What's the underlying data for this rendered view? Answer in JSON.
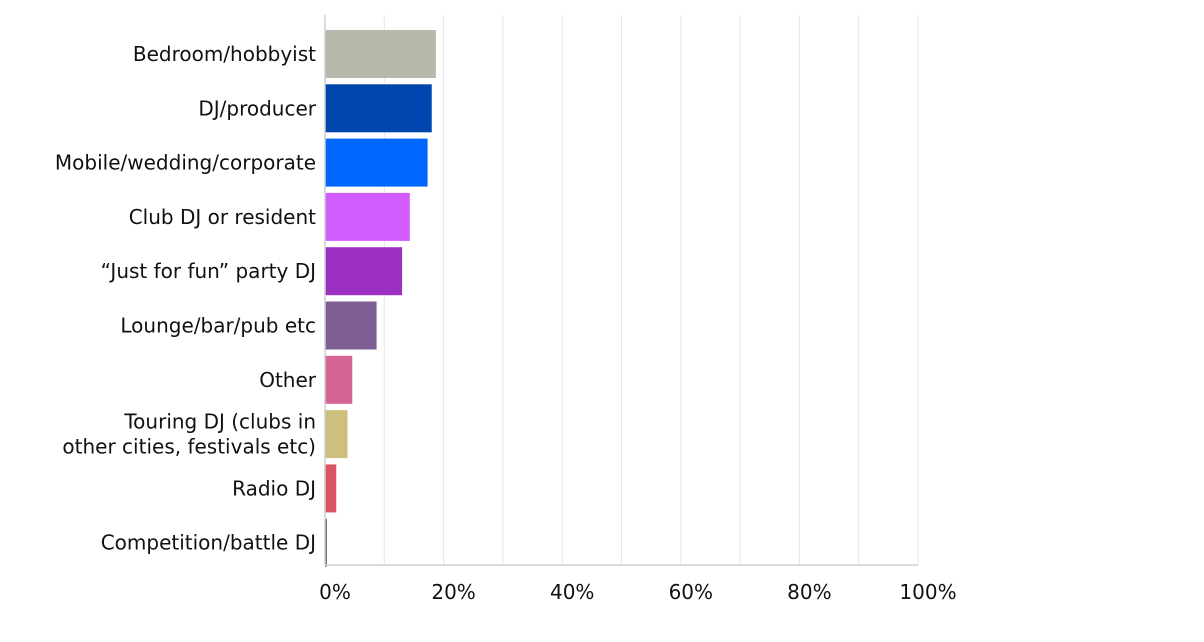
{
  "chart_data": {
    "type": "bar",
    "orientation": "horizontal",
    "categories": [
      "Bedroom/hobbyist",
      "DJ/producer",
      "Mobile/wedding/corporate",
      "Club DJ or resident",
      "“Just for fun” party DJ",
      "Lounge/bar/pub etc",
      "Other",
      "Touring DJ (clubs in other cities, festivals etc)",
      "Radio DJ",
      "Competition/battle DJ"
    ],
    "category_lines": [
      [
        "Bedroom/hobbyist"
      ],
      [
        "DJ/producer"
      ],
      [
        "Mobile/wedding/corporate"
      ],
      [
        "Club DJ or resident"
      ],
      [
        "“Just for fun” party DJ"
      ],
      [
        "Lounge/bar/pub etc"
      ],
      [
        "Other"
      ],
      [
        "Touring DJ (clubs in",
        "other cities, festivals etc)"
      ],
      [
        "Radio DJ"
      ],
      [
        "Competition/battle DJ"
      ]
    ],
    "values": [
      18.7,
      18.0,
      17.3,
      14.3,
      13.0,
      8.7,
      4.6,
      3.8,
      1.9,
      0.3
    ],
    "colors": [
      "#b5b8ab",
      "#0044ad",
      "#0066ff",
      "#d35cff",
      "#9b2fc0",
      "#7d5f94",
      "#d66494",
      "#cdbf7d",
      "#dc5366",
      "#555555"
    ],
    "xlim": [
      0,
      100
    ],
    "xticks": [
      "0%",
      "20%",
      "40%",
      "60%",
      "80%",
      "100%"
    ],
    "xtick_values": [
      0,
      20,
      40,
      60,
      80,
      100
    ],
    "grid": true,
    "title": "",
    "xlabel": "",
    "ylabel": ""
  }
}
